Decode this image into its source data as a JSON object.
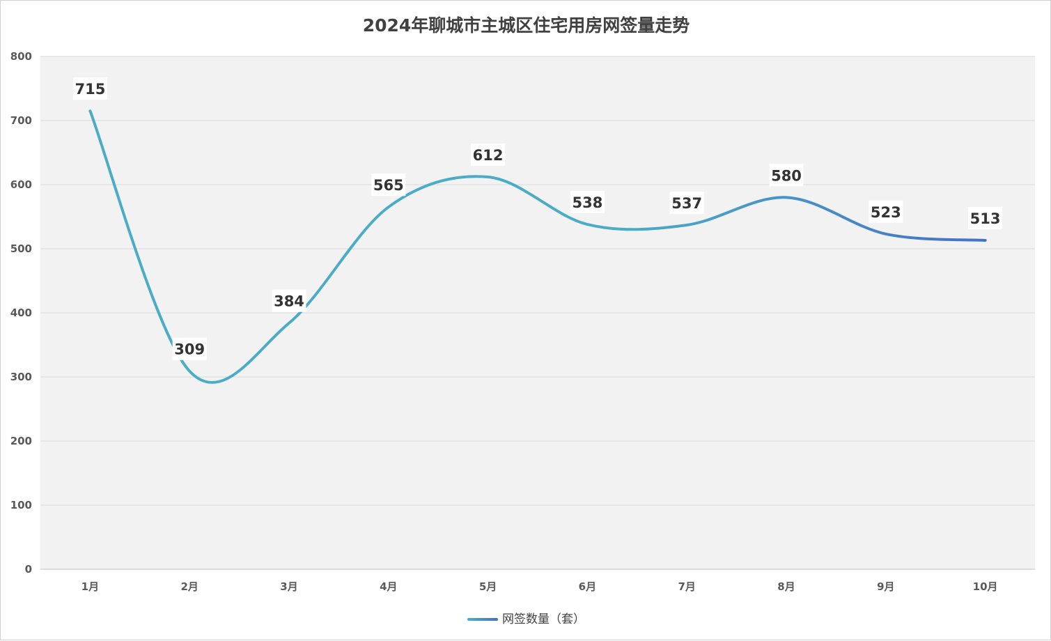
{
  "chart_data": {
    "type": "line",
    "title": "2024年聊城市主城区住宅用房网签量走势",
    "categories": [
      "1月",
      "2月",
      "3月",
      "4月",
      "5月",
      "6月",
      "7月",
      "8月",
      "9月",
      "10月"
    ],
    "series": [
      {
        "name": "网签数量（套）",
        "values": [
          715,
          309,
          384,
          565,
          612,
          538,
          537,
          580,
          523,
          513
        ],
        "color_start": "#4bacc6",
        "color_end": "#4472c4"
      }
    ],
    "ylim": [
      0,
      800
    ],
    "yticks": [
      0,
      100,
      200,
      300,
      400,
      500,
      600,
      700,
      800
    ],
    "grid": true,
    "smooth": true,
    "data_labels": true,
    "legend_position": "bottom",
    "plot_background": "#f2f2f2",
    "grid_color": "#d9d9d9"
  }
}
